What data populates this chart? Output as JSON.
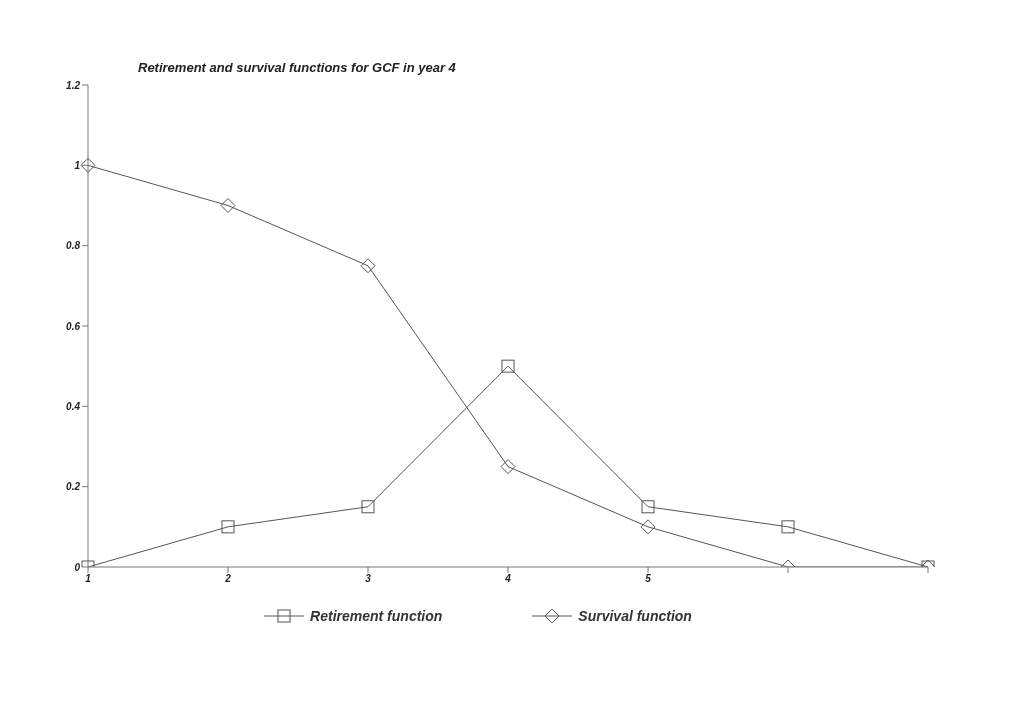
{
  "chart_data": {
    "type": "line",
    "title": "Retirement and survival functions for GCF in year 4",
    "categories": [
      "1",
      "2",
      "3",
      "4",
      "5",
      null,
      null
    ],
    "series": [
      {
        "name": "Retirement function",
        "color": "#555555",
        "marker": "square",
        "values": [
          0,
          0.1,
          0.15,
          0.5,
          0.15,
          0.1,
          0
        ]
      },
      {
        "name": "Survival function",
        "color": "#555555",
        "marker": "diamond",
        "values": [
          1,
          0.9,
          0.75,
          0.25,
          0.1,
          0,
          0
        ]
      }
    ],
    "ylim": [
      0,
      1.2
    ],
    "yticks": [
      0,
      0.2,
      0.4,
      0.6,
      0.8,
      1,
      1.2
    ],
    "grid": false,
    "legend": "bottom",
    "line_style": "solid"
  }
}
